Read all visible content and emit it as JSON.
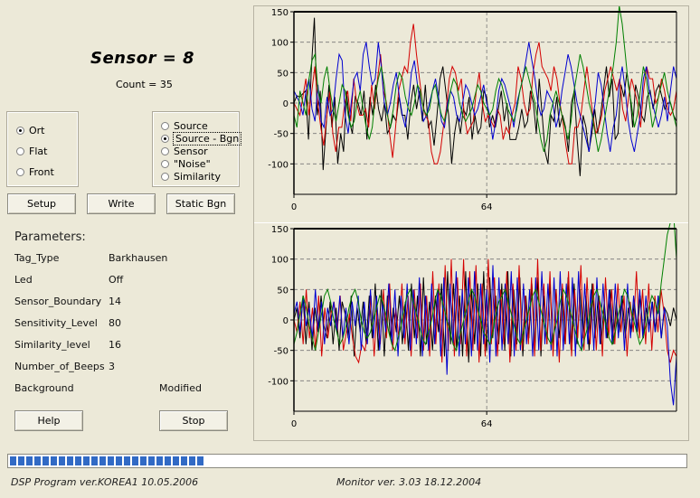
{
  "header": {
    "sensor_title": "Sensor = 8",
    "count_label": "Count = 35"
  },
  "orientation": {
    "options": [
      {
        "label": "Ort",
        "checked": true
      },
      {
        "label": "Flat",
        "checked": false
      },
      {
        "label": "Front",
        "checked": false
      }
    ]
  },
  "display_mode": {
    "options": [
      {
        "label": "Source",
        "checked": false
      },
      {
        "label": "Source - Bgn",
        "checked": true
      },
      {
        "label": "Sensor",
        "checked": false
      },
      {
        "label": "\"Noise\"",
        "checked": false
      },
      {
        "label": "Similarity",
        "checked": false
      }
    ]
  },
  "buttons": {
    "setup": "Setup",
    "write": "Write",
    "static_bgn": "Static Bgn",
    "help": "Help",
    "stop": "Stop"
  },
  "parameters": {
    "title": "Parameters:",
    "rows": [
      {
        "name": "Tag_Type",
        "value": "Barkhausen"
      },
      {
        "name": "Led",
        "value": "Off"
      },
      {
        "name": "Sensor_Boundary",
        "value": "14"
      },
      {
        "name": "Sensitivity_Level",
        "value": "80"
      },
      {
        "name": "Similarity_level",
        "value": "16"
      },
      {
        "name": "Number_of_Beeps",
        "value": "3"
      },
      {
        "name": "Background",
        "value": "Modified"
      }
    ]
  },
  "progress": {
    "fraction": 0.29
  },
  "footer": {
    "dsp_label": "DSP Program ver.",
    "dsp_value": "KOREA1 10.05.2006",
    "monitor_label": "Monitor  ver. 3.03  18.12.2004"
  },
  "colors": {
    "series1": "#000000",
    "series2": "#d40000",
    "series3": "#0000d0",
    "series4": "#008000",
    "progress": "#316ac5"
  },
  "chart_data": [
    {
      "type": "line",
      "xlim": [
        0,
        127
      ],
      "ylim": [
        -150,
        150
      ],
      "x_ticks": [
        "0",
        "64"
      ],
      "y_ticks": [
        "150",
        "100",
        "50",
        "0",
        "-50",
        "-100"
      ],
      "series": [
        {
          "color": "#000000",
          "values": [
            0,
            12,
            10,
            15,
            20,
            -60,
            60,
            140,
            -20,
            20,
            -110,
            -40,
            30,
            -40,
            10,
            -100,
            -50,
            -80,
            20,
            -30,
            -50,
            10,
            0,
            -20,
            20,
            -60,
            10,
            -20,
            30,
            -10,
            -30,
            0,
            -50,
            -40,
            -20,
            -30,
            10,
            -20,
            -20,
            -60,
            0,
            30,
            -10,
            20,
            -30,
            30,
            -40,
            -30,
            -70,
            -20,
            40,
            60,
            20,
            -20,
            -100,
            -50,
            -20,
            -50,
            -10,
            -20,
            10,
            -60,
            -20,
            -50,
            -40,
            20,
            10,
            -40,
            -20,
            -40,
            -10,
            20,
            -30,
            0,
            -60,
            -60,
            -60,
            -40,
            -10,
            -40,
            -30,
            20,
            0,
            -50,
            40,
            -20,
            -80,
            -100,
            -20,
            -30,
            10,
            -40,
            -20,
            -40,
            -80,
            0,
            20,
            -60,
            -120,
            -20,
            -40,
            -80,
            -50,
            -10,
            -50,
            -20,
            20,
            60,
            10,
            40,
            -60,
            -50,
            30,
            10,
            50,
            20,
            -40,
            30,
            10,
            -20,
            -30,
            10,
            20,
            -10,
            20,
            30,
            10,
            -10,
            0,
            0,
            -20,
            -30
          ]
        },
        {
          "color": "#d40000",
          "values": [
            0,
            -10,
            -20,
            10,
            40,
            -20,
            20,
            60,
            0,
            -40,
            -70,
            -20,
            20,
            -50,
            -80,
            -40,
            -40,
            0,
            20,
            -30,
            40,
            0,
            -20,
            -20,
            -10,
            -40,
            30,
            -10,
            40,
            80,
            20,
            0,
            -50,
            -90,
            -40,
            20,
            40,
            60,
            50,
            100,
            130,
            80,
            40,
            0,
            -20,
            -30,
            -80,
            -100,
            -100,
            -80,
            -40,
            -10,
            40,
            60,
            50,
            20,
            40,
            -20,
            -50,
            -40,
            -30,
            20,
            50,
            0,
            -30,
            -20,
            -30,
            -40,
            -10,
            -20,
            -60,
            -40,
            -50,
            -20,
            0,
            60,
            40,
            0,
            -20,
            -10,
            50,
            80,
            100,
            60,
            50,
            40,
            20,
            60,
            40,
            0,
            -30,
            -70,
            -100,
            -100,
            -40,
            -40,
            -20,
            20,
            60,
            20,
            -20,
            -50,
            -40,
            -20,
            20,
            40,
            60,
            40,
            20,
            40,
            -10,
            -30,
            10,
            40,
            20,
            0,
            -40,
            20,
            60,
            40,
            40,
            0,
            10,
            40,
            20,
            -10,
            -20,
            -10,
            20
          ]
        },
        {
          "color": "#0000d0",
          "values": [
            20,
            10,
            0,
            -20,
            20,
            40,
            -10,
            -30,
            30,
            -30,
            -40,
            10,
            -20,
            -10,
            40,
            80,
            70,
            -20,
            -50,
            0,
            40,
            50,
            20,
            80,
            100,
            60,
            30,
            40,
            100,
            60,
            0,
            -20,
            0,
            30,
            50,
            10,
            -20,
            -40,
            0,
            50,
            70,
            30,
            0,
            -30,
            -20,
            0,
            20,
            40,
            10,
            -30,
            -40,
            0,
            20,
            10,
            -20,
            -30,
            0,
            30,
            20,
            0,
            -20,
            -10,
            10,
            30,
            0,
            -20,
            -60,
            -30,
            20,
            40,
            30,
            10,
            -10,
            -40,
            0,
            20,
            40,
            70,
            100,
            70,
            40,
            0,
            -20,
            -10,
            20,
            10,
            0,
            -40,
            -20,
            20,
            50,
            80,
            60,
            30,
            0,
            -20,
            -40,
            -60,
            -80,
            -30,
            0,
            50,
            30,
            -10,
            -50,
            -80,
            -40,
            -20,
            30,
            60,
            20,
            -30,
            -60,
            -80,
            -50,
            -20,
            40,
            60,
            20,
            0,
            -20,
            -40,
            -20,
            10,
            -30,
            20,
            60,
            40
          ]
        },
        {
          "color": "#008000",
          "values": [
            -20,
            -40,
            20,
            0,
            -20,
            40,
            70,
            80,
            20,
            0,
            40,
            60,
            20,
            -10,
            -30,
            0,
            30,
            20,
            -20,
            -40,
            -30,
            0,
            20,
            -10,
            -40,
            -60,
            -40,
            10,
            40,
            60,
            30,
            -20,
            -40,
            -10,
            30,
            50,
            40,
            10,
            -10,
            -20,
            0,
            30,
            20,
            -10,
            -20,
            -10,
            20,
            30,
            0,
            -20,
            -30,
            -10,
            20,
            40,
            30,
            0,
            -20,
            -30,
            -20,
            -10,
            10,
            30,
            20,
            0,
            -10,
            -20,
            -10,
            20,
            40,
            30,
            10,
            -10,
            -20,
            -30,
            -10,
            20,
            40,
            60,
            40,
            20,
            0,
            -30,
            -60,
            -80,
            -60,
            -20,
            0,
            20,
            0,
            -20,
            -40,
            -60,
            -30,
            20,
            50,
            80,
            60,
            30,
            0,
            -20,
            -50,
            -80,
            -60,
            -30,
            0,
            30,
            60,
            100,
            160,
            130,
            80,
            30,
            0,
            -40,
            -20,
            20,
            60,
            40,
            0,
            -40,
            -20,
            10,
            30,
            50,
            20,
            0,
            -20,
            -40
          ]
        }
      ]
    },
    {
      "type": "line",
      "xlim": [
        0,
        127
      ],
      "ylim": [
        -150,
        150
      ],
      "x_ticks": [
        "0",
        "64"
      ],
      "y_ticks": [
        "150",
        "100",
        "50",
        "0",
        "-50",
        "-100"
      ],
      "series": [
        {
          "color": "#000000",
          "values": [
            0,
            20,
            -30,
            40,
            -40,
            30,
            -50,
            20,
            -20,
            40,
            -10,
            -30,
            30,
            -40,
            20,
            -50,
            30,
            10,
            -30,
            40,
            -60,
            20,
            -20,
            30,
            -40,
            40,
            -30,
            60,
            -50,
            50,
            -60,
            40,
            -30,
            20,
            -20,
            40,
            -40,
            30,
            -50,
            60,
            -30,
            40,
            -60,
            70,
            -40,
            30,
            -50,
            40,
            -20,
            60,
            -60,
            80,
            -40,
            60,
            -50,
            40,
            -60,
            80,
            -70,
            50,
            -40,
            60,
            -60,
            80,
            -50,
            70,
            -30,
            40,
            -40,
            60,
            -50,
            80,
            -60,
            50,
            -40,
            70,
            -60,
            40,
            -30,
            60,
            -50,
            70,
            -60,
            40,
            -40,
            60,
            -50,
            50,
            -30,
            40,
            -40,
            70,
            -50,
            60,
            -40,
            50,
            -30,
            40,
            -50,
            60,
            -30,
            40,
            -40,
            30,
            -30,
            50,
            -40,
            30,
            -20,
            40,
            -30,
            20,
            -20,
            30,
            -20,
            40,
            -30,
            20,
            -10,
            30,
            -20,
            40,
            -30,
            20,
            10,
            -10,
            20,
            0
          ]
        },
        {
          "color": "#d40000",
          "values": [
            0,
            -20,
            30,
            -40,
            50,
            -30,
            20,
            -50,
            40,
            -60,
            20,
            -30,
            10,
            30,
            -20,
            40,
            -50,
            -20,
            10,
            -30,
            -60,
            -70,
            -40,
            -50,
            -20,
            40,
            -60,
            20,
            -40,
            50,
            -30,
            60,
            -50,
            20,
            -30,
            60,
            -40,
            40,
            -60,
            50,
            -30,
            60,
            -50,
            40,
            -60,
            80,
            -40,
            60,
            -70,
            90,
            -50,
            100,
            -60,
            70,
            -40,
            100,
            -60,
            80,
            -50,
            90,
            -70,
            60,
            -60,
            100,
            -40,
            70,
            -60,
            50,
            -40,
            80,
            -70,
            60,
            -50,
            90,
            -50,
            40,
            -40,
            70,
            -60,
            100,
            -50,
            60,
            -40,
            80,
            -60,
            50,
            -70,
            60,
            -40,
            80,
            -60,
            50,
            -30,
            90,
            -50,
            70,
            -40,
            60,
            -50,
            40,
            -60,
            70,
            -30,
            50,
            -40,
            60,
            -20,
            40,
            -60,
            30,
            -20,
            80,
            -30,
            50,
            -40,
            60,
            -50,
            40,
            -20,
            50,
            10,
            -50,
            -70,
            -50,
            -60
          ]
        },
        {
          "color": "#0000d0",
          "values": [
            10,
            30,
            -20,
            40,
            -10,
            20,
            -30,
            50,
            -20,
            30,
            -40,
            20,
            -10,
            30,
            -20,
            40,
            -30,
            20,
            -40,
            30,
            -10,
            40,
            -50,
            30,
            -40,
            50,
            -30,
            40,
            -50,
            30,
            -20,
            60,
            -40,
            50,
            -60,
            40,
            -30,
            60,
            -50,
            50,
            -40,
            70,
            -60,
            40,
            -50,
            60,
            -40,
            50,
            -60,
            70,
            -90,
            60,
            -40,
            80,
            -60,
            50,
            -40,
            70,
            -60,
            80,
            -50,
            60,
            -40,
            50,
            -70,
            90,
            -60,
            70,
            -50,
            60,
            -40,
            80,
            -60,
            70,
            -50,
            60,
            -40,
            50,
            -60,
            70,
            -50,
            80,
            -40,
            60,
            -50,
            70,
            -60,
            80,
            -50,
            60,
            -40,
            70,
            -60,
            80,
            -50,
            60,
            -40,
            50,
            -50,
            70,
            -40,
            60,
            -30,
            50,
            -40,
            60,
            -30,
            40,
            -50,
            60,
            -30,
            40,
            -20,
            50,
            -30,
            40,
            -20,
            30,
            -20,
            40,
            -30,
            20,
            -10,
            -100,
            -140,
            -60
          ]
        },
        {
          "color": "#008000",
          "values": [
            -40,
            -20,
            10,
            40,
            20,
            -10,
            -30,
            -50,
            -20,
            10,
            40,
            50,
            30,
            0,
            -20,
            -40,
            -30,
            -10,
            20,
            40,
            50,
            30,
            0,
            -20,
            -30,
            -20,
            0,
            20,
            40,
            30,
            10,
            -20,
            -40,
            -50,
            -30,
            -10,
            20,
            40,
            50,
            30,
            10,
            -10,
            -30,
            -40,
            -20,
            0,
            30,
            50,
            40,
            20,
            0,
            -20,
            -40,
            -50,
            -30,
            -10,
            10,
            30,
            50,
            40,
            20,
            0,
            -20,
            -30,
            -40,
            -20,
            10,
            30,
            40,
            50,
            30,
            10,
            -10,
            -30,
            -40,
            -20,
            0,
            20,
            40,
            50,
            30,
            10,
            -10,
            -30,
            -40,
            -20,
            0,
            30,
            50,
            40,
            20,
            0,
            -20,
            -40,
            -50,
            -30,
            -10,
            20,
            40,
            50,
            30,
            10,
            -10,
            -30,
            -40,
            -20,
            10,
            30,
            50,
            40,
            20,
            0,
            -20,
            -40,
            -30,
            -10,
            20,
            40,
            30,
            10,
            60,
            100,
            140,
            160,
            180,
            100
          ]
        }
      ]
    }
  ]
}
